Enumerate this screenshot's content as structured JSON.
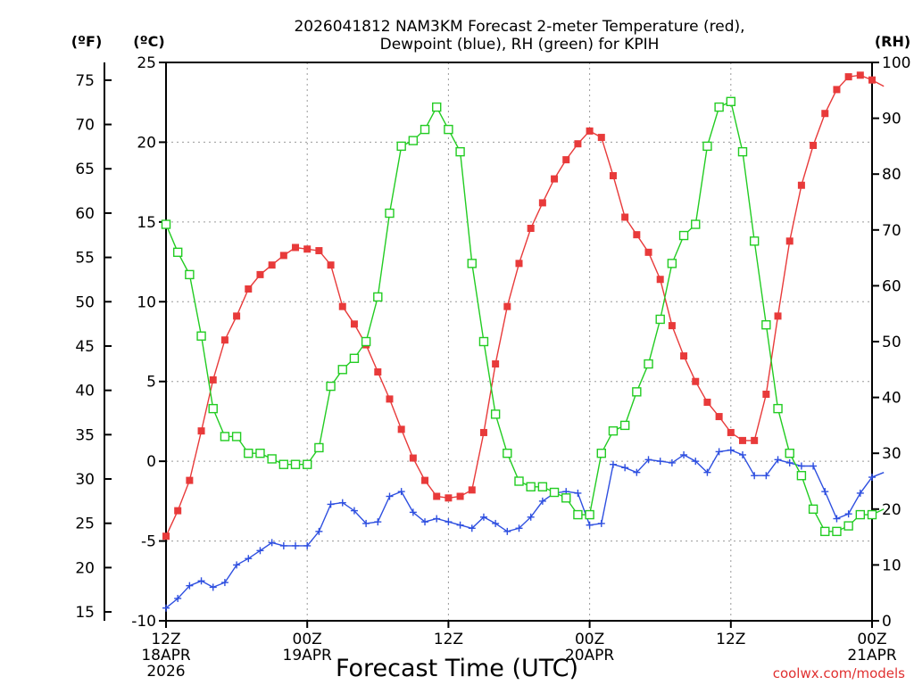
{
  "chart_data": {
    "type": "line",
    "title": [
      "2026041812 NAM3KM Forecast 2-meter Temperature (red),",
      "Dewpoint (blue), RH (green) for KPIH"
    ],
    "xlabel": "Forecast Time (UTC)",
    "credit": "coolwx.com/models",
    "units": {
      "left_f": "(ºF)",
      "left_c": "(ºC)",
      "right": "(RH)"
    },
    "x_range_hours": [
      0,
      60
    ],
    "x_ticks": [
      {
        "hour": 0,
        "lines": [
          "12Z",
          "18APR",
          "2026"
        ]
      },
      {
        "hour": 12,
        "lines": [
          "00Z",
          "19APR"
        ]
      },
      {
        "hour": 24,
        "lines": [
          "12Z"
        ]
      },
      {
        "hour": 36,
        "lines": [
          "00Z",
          "20APR"
        ]
      },
      {
        "hour": 48,
        "lines": [
          "12Z"
        ]
      },
      {
        "hour": 60,
        "lines": [
          "00Z",
          "21APR"
        ]
      }
    ],
    "y_celsius": {
      "range": [
        -10,
        25
      ],
      "ticks": [
        "-10",
        "-5",
        "0",
        "5",
        "10",
        "15",
        "20",
        "25"
      ]
    },
    "y_fahrenheit": {
      "ticks": [
        "15",
        "20",
        "25",
        "30",
        "35",
        "40",
        "45",
        "50",
        "55",
        "60",
        "65",
        "70",
        "75"
      ]
    },
    "y_rh": {
      "range": [
        0,
        100
      ],
      "ticks": [
        "0",
        "10",
        "20",
        "30",
        "40",
        "50",
        "60",
        "70",
        "80",
        "90",
        "100"
      ]
    },
    "series": [
      {
        "name": "2-meter Temperature",
        "axis": "celsius",
        "color": "#e83a3a",
        "marker": "filled-square",
        "values": [
          -4.7,
          -3.1,
          -1.2,
          1.9,
          5.1,
          7.6,
          9.1,
          10.8,
          11.7,
          12.3,
          12.9,
          13.4,
          13.3,
          13.2,
          12.3,
          9.7,
          8.6,
          7.3,
          5.6,
          3.9,
          2.0,
          0.2,
          -1.2,
          -2.2,
          -2.3,
          -2.2,
          -1.8,
          1.8,
          6.1,
          9.7,
          12.4,
          14.6,
          16.2,
          17.7,
          18.9,
          19.9,
          20.7,
          20.3,
          17.9,
          15.3,
          14.2,
          13.1,
          11.4,
          8.5,
          6.6,
          5.0,
          3.7,
          2.8,
          1.8,
          1.3,
          1.3,
          4.2,
          9.1,
          13.8,
          17.3,
          19.8,
          21.8,
          23.3,
          24.1,
          24.2,
          23.9,
          23.5
        ]
      },
      {
        "name": "Dewpoint",
        "axis": "celsius",
        "color": "#2e4fe0",
        "marker": "plus",
        "values": [
          -9.2,
          -8.6,
          -7.8,
          -7.5,
          -7.9,
          -7.6,
          -6.5,
          -6.1,
          -5.6,
          -5.1,
          -5.3,
          -5.3,
          -5.3,
          -4.4,
          -2.7,
          -2.6,
          -3.1,
          -3.9,
          -3.8,
          -2.2,
          -1.9,
          -3.2,
          -3.8,
          -3.6,
          -3.8,
          -4.0,
          -4.2,
          -3.5,
          -3.9,
          -4.4,
          -4.2,
          -3.5,
          -2.5,
          -2.0,
          -1.9,
          -2.0,
          -4.0,
          -3.9,
          -0.2,
          -0.4,
          -0.7,
          0.1,
          0.0,
          -0.1,
          0.4,
          0.0,
          -0.7,
          0.6,
          0.7,
          0.4,
          -0.9,
          -0.9,
          0.1,
          -0.1,
          -0.3,
          -0.3,
          -1.9,
          -3.6,
          -3.3,
          -2.0,
          -1.0,
          -0.7
        ]
      },
      {
        "name": "RH",
        "axis": "rh",
        "color": "#22cc22",
        "marker": "hollow-square",
        "values": [
          71,
          66,
          62,
          51,
          38,
          33,
          33,
          30,
          30,
          29,
          28,
          28,
          28,
          31,
          42,
          45,
          47,
          50,
          58,
          73,
          85,
          86,
          88,
          92,
          88,
          84,
          64,
          50,
          37,
          30,
          25,
          24,
          24,
          23,
          22,
          19,
          19,
          30,
          34,
          35,
          41,
          46,
          54,
          64,
          69,
          71,
          85,
          92,
          93,
          84,
          68,
          53,
          38,
          30,
          26,
          20,
          16,
          16,
          17,
          19,
          19,
          20
        ]
      }
    ]
  }
}
